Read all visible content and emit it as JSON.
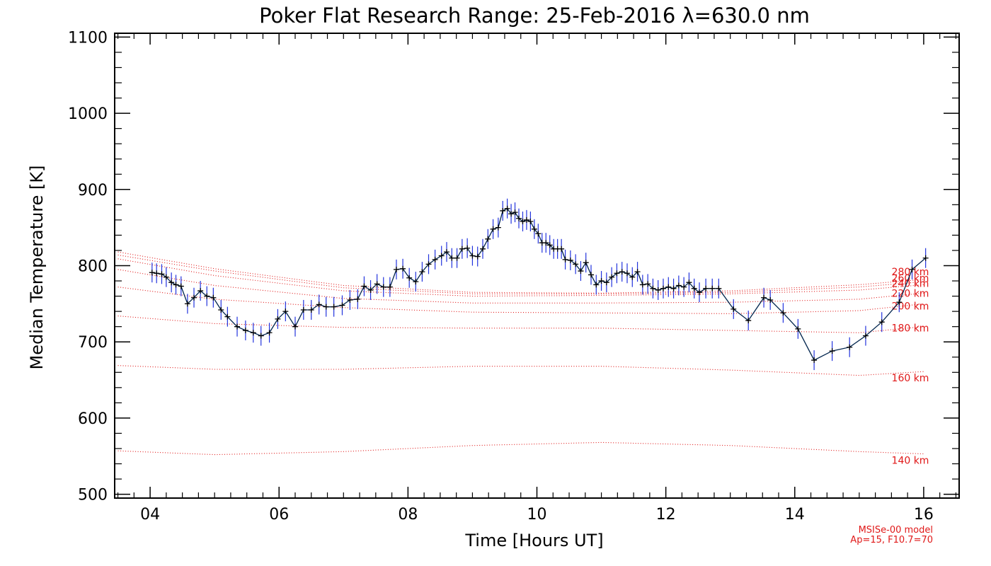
{
  "chart_data": {
    "type": "line",
    "title": "Poker Flat Research Range: 25-Feb-2016 λ=630.0 nm",
    "xlabel": "Time [Hours UT]",
    "ylabel": "Median Temperature [K]",
    "xlim": [
      3.45,
      16.55
    ],
    "ylim": [
      495,
      1105
    ],
    "x_ticks": [
      4,
      6,
      8,
      10,
      12,
      14,
      16
    ],
    "x_tick_labels": [
      "04",
      "06",
      "08",
      "10",
      "12",
      "14",
      "16"
    ],
    "y_ticks": [
      500,
      600,
      700,
      800,
      900,
      1000,
      1100
    ],
    "y_tick_labels": [
      "500",
      "600",
      "700",
      "800",
      "900",
      "1000",
      "1100"
    ],
    "grid": false,
    "colors": {
      "measurement_line": "#00244d",
      "error_bars": "#2233dd",
      "markers": "#000000",
      "model_lines": "#e01818"
    },
    "series": [
      {
        "kind": "measurement",
        "error": 13,
        "x": [
          4.03,
          4.1,
          4.18,
          4.25,
          4.33,
          4.4,
          4.48,
          4.58,
          4.68,
          4.78,
          4.88,
          4.98,
          5.1,
          5.2,
          5.35,
          5.48,
          5.6,
          5.72,
          5.85,
          5.98,
          6.1,
          6.25,
          6.38,
          6.5,
          6.62,
          6.73,
          6.85,
          6.98,
          7.1,
          7.22,
          7.32,
          7.42,
          7.52,
          7.62,
          7.72,
          7.82,
          7.92,
          8.02,
          8.12,
          8.22,
          8.32,
          8.42,
          8.52,
          8.6,
          8.68,
          8.76,
          8.84,
          8.92,
          9.0,
          9.08,
          9.16,
          9.24,
          9.32,
          9.4,
          9.47,
          9.54,
          9.6,
          9.66,
          9.72,
          9.78,
          9.84,
          9.9,
          9.96,
          10.02,
          10.08,
          10.14,
          10.2,
          10.26,
          10.32,
          10.38,
          10.44,
          10.52,
          10.6,
          10.68,
          10.76,
          10.84,
          10.92,
          11.0,
          11.08,
          11.16,
          11.24,
          11.32,
          11.4,
          11.48,
          11.56,
          11.64,
          11.72,
          11.8,
          11.88,
          11.96,
          12.04,
          12.12,
          12.2,
          12.28,
          12.36,
          12.44,
          12.52,
          12.62,
          12.72,
          12.82,
          13.05,
          13.28,
          13.52,
          13.62,
          13.82,
          14.05,
          14.3,
          14.58,
          14.85,
          15.1,
          15.35,
          15.62,
          15.82,
          16.03
        ],
        "y": [
          791,
          790,
          789,
          785,
          778,
          775,
          773,
          750,
          758,
          767,
          760,
          758,
          742,
          733,
          720,
          715,
          712,
          708,
          712,
          730,
          740,
          720,
          742,
          742,
          749,
          746,
          746,
          748,
          755,
          756,
          773,
          768,
          776,
          772,
          772,
          795,
          796,
          784,
          779,
          792,
          802,
          808,
          813,
          818,
          810,
          810,
          822,
          823,
          813,
          812,
          822,
          835,
          848,
          850,
          872,
          875,
          868,
          870,
          862,
          858,
          860,
          858,
          848,
          842,
          830,
          830,
          827,
          822,
          822,
          822,
          808,
          807,
          802,
          793,
          804,
          788,
          775,
          780,
          778,
          785,
          790,
          792,
          790,
          785,
          792,
          775,
          776,
          770,
          768,
          770,
          772,
          770,
          774,
          772,
          778,
          770,
          765,
          770,
          770,
          770,
          743,
          728,
          758,
          755,
          738,
          717,
          676,
          688,
          693,
          708,
          726,
          752,
          795,
          810
        ]
      },
      {
        "kind": "model",
        "name": "140 km",
        "x": [
          3.5,
          5,
          7,
          9,
          11,
          13,
          15,
          16
        ],
        "y": [
          557,
          552,
          556,
          564,
          568,
          564,
          556,
          553
        ]
      },
      {
        "kind": "model",
        "name": "160 km",
        "x": [
          3.5,
          5,
          7,
          9,
          11,
          13,
          15,
          16
        ],
        "y": [
          669,
          664,
          664,
          668,
          668,
          663,
          656,
          661
        ]
      },
      {
        "kind": "model",
        "name": "180 km",
        "x": [
          3.5,
          5,
          7,
          9,
          11,
          13,
          15,
          16
        ],
        "y": [
          734,
          724,
          719,
          718,
          718,
          715,
          712,
          720
        ]
      },
      {
        "kind": "model",
        "name": "200 km",
        "x": [
          3.5,
          5,
          7,
          9,
          11,
          13,
          15,
          16
        ],
        "y": [
          772,
          756,
          745,
          739,
          738,
          737,
          741,
          750
        ]
      },
      {
        "kind": "model",
        "name": "220 km",
        "x": [
          3.5,
          5,
          7,
          9,
          11,
          13,
          15,
          16
        ],
        "y": [
          795,
          774,
          757,
          751,
          751,
          752,
          756,
          764
        ]
      },
      {
        "kind": "model",
        "name": "240 km",
        "x": [
          3.5,
          5,
          7,
          9,
          11,
          13,
          15,
          16
        ],
        "y": [
          809,
          787,
          767,
          760,
          761,
          763,
          768,
          775
        ]
      },
      {
        "kind": "model",
        "name": "260 km",
        "x": [
          3.5,
          5,
          7,
          9,
          11,
          13,
          15,
          16
        ],
        "y": [
          814,
          793,
          771,
          763,
          763,
          765,
          772,
          779
        ]
      },
      {
        "kind": "model",
        "name": "280 km",
        "x": [
          3.5,
          5,
          7,
          9,
          11,
          13,
          15,
          16
        ],
        "y": [
          818,
          796,
          774,
          765,
          764,
          767,
          775,
          782
        ]
      }
    ],
    "annotations": [
      "MSISe-00 model",
      "Ap=15, F10.7=70"
    ]
  }
}
